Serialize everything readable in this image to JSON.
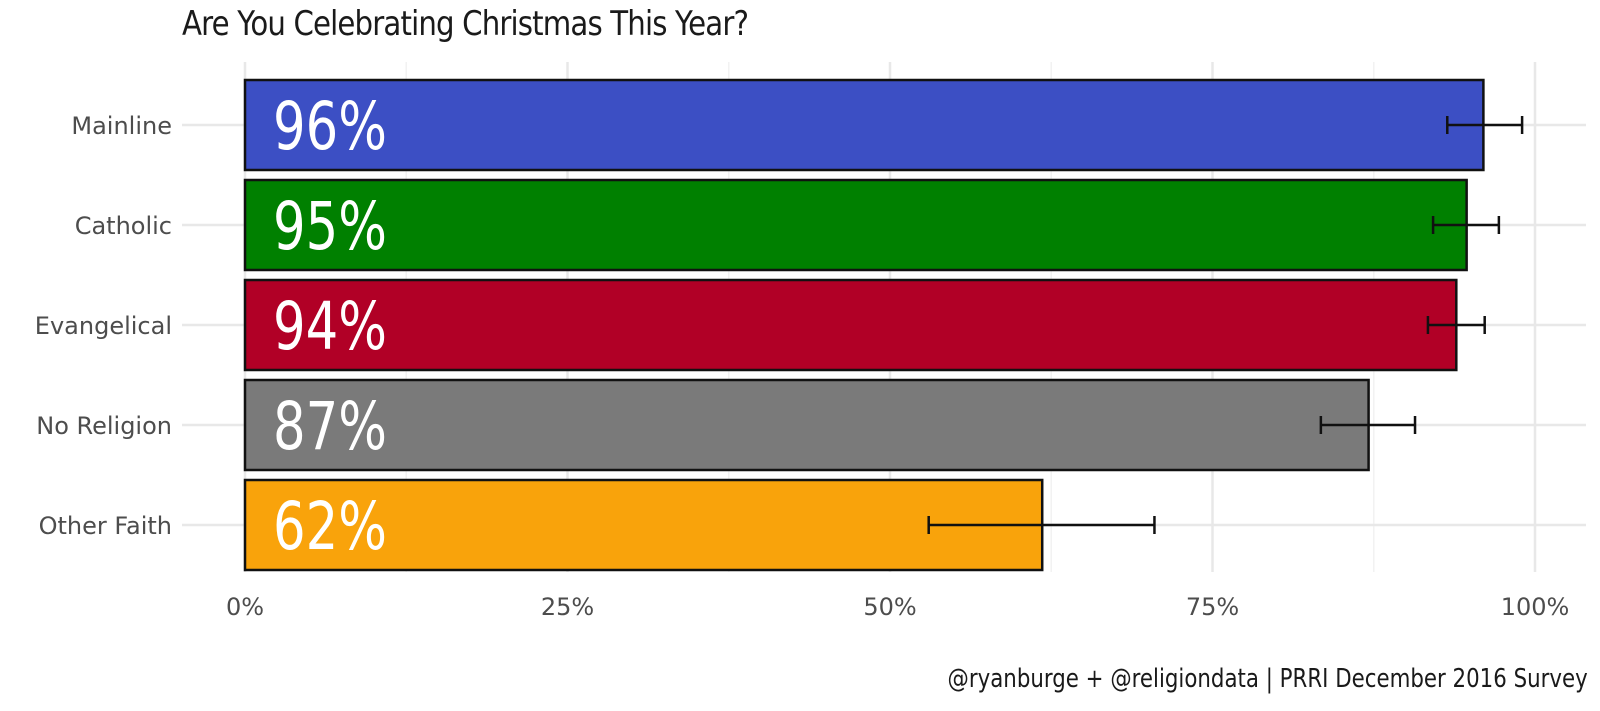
{
  "chart_data": {
    "type": "bar",
    "orientation": "horizontal",
    "title": "Are You Celebrating Christmas This Year?",
    "caption": "@ryanburge + @religiondata | PRRI December 2016 Survey",
    "xlabel": "",
    "ylabel": "",
    "xlim": [
      0,
      1
    ],
    "x_ticks": [
      0,
      0.25,
      0.5,
      0.75,
      1.0
    ],
    "x_tick_labels": [
      "0%",
      "25%",
      "50%",
      "75%",
      "100%"
    ],
    "grid": true,
    "legend": "none",
    "categories": [
      "Mainline",
      "Catholic",
      "Evangelical",
      "No Religion",
      "Other Faith"
    ],
    "values": [
      0.96,
      0.947,
      0.939,
      0.871,
      0.618
    ],
    "value_labels": [
      "96%",
      "95%",
      "94%",
      "87%",
      "62%"
    ],
    "error_low": [
      0.932,
      0.921,
      0.917,
      0.834,
      0.53
    ],
    "error_high": [
      0.99,
      0.972,
      0.961,
      0.907,
      0.705
    ],
    "colors": [
      "#3c4fc4",
      "#008000",
      "#b10026",
      "#7a7a7a",
      "#f9a30b"
    ]
  }
}
